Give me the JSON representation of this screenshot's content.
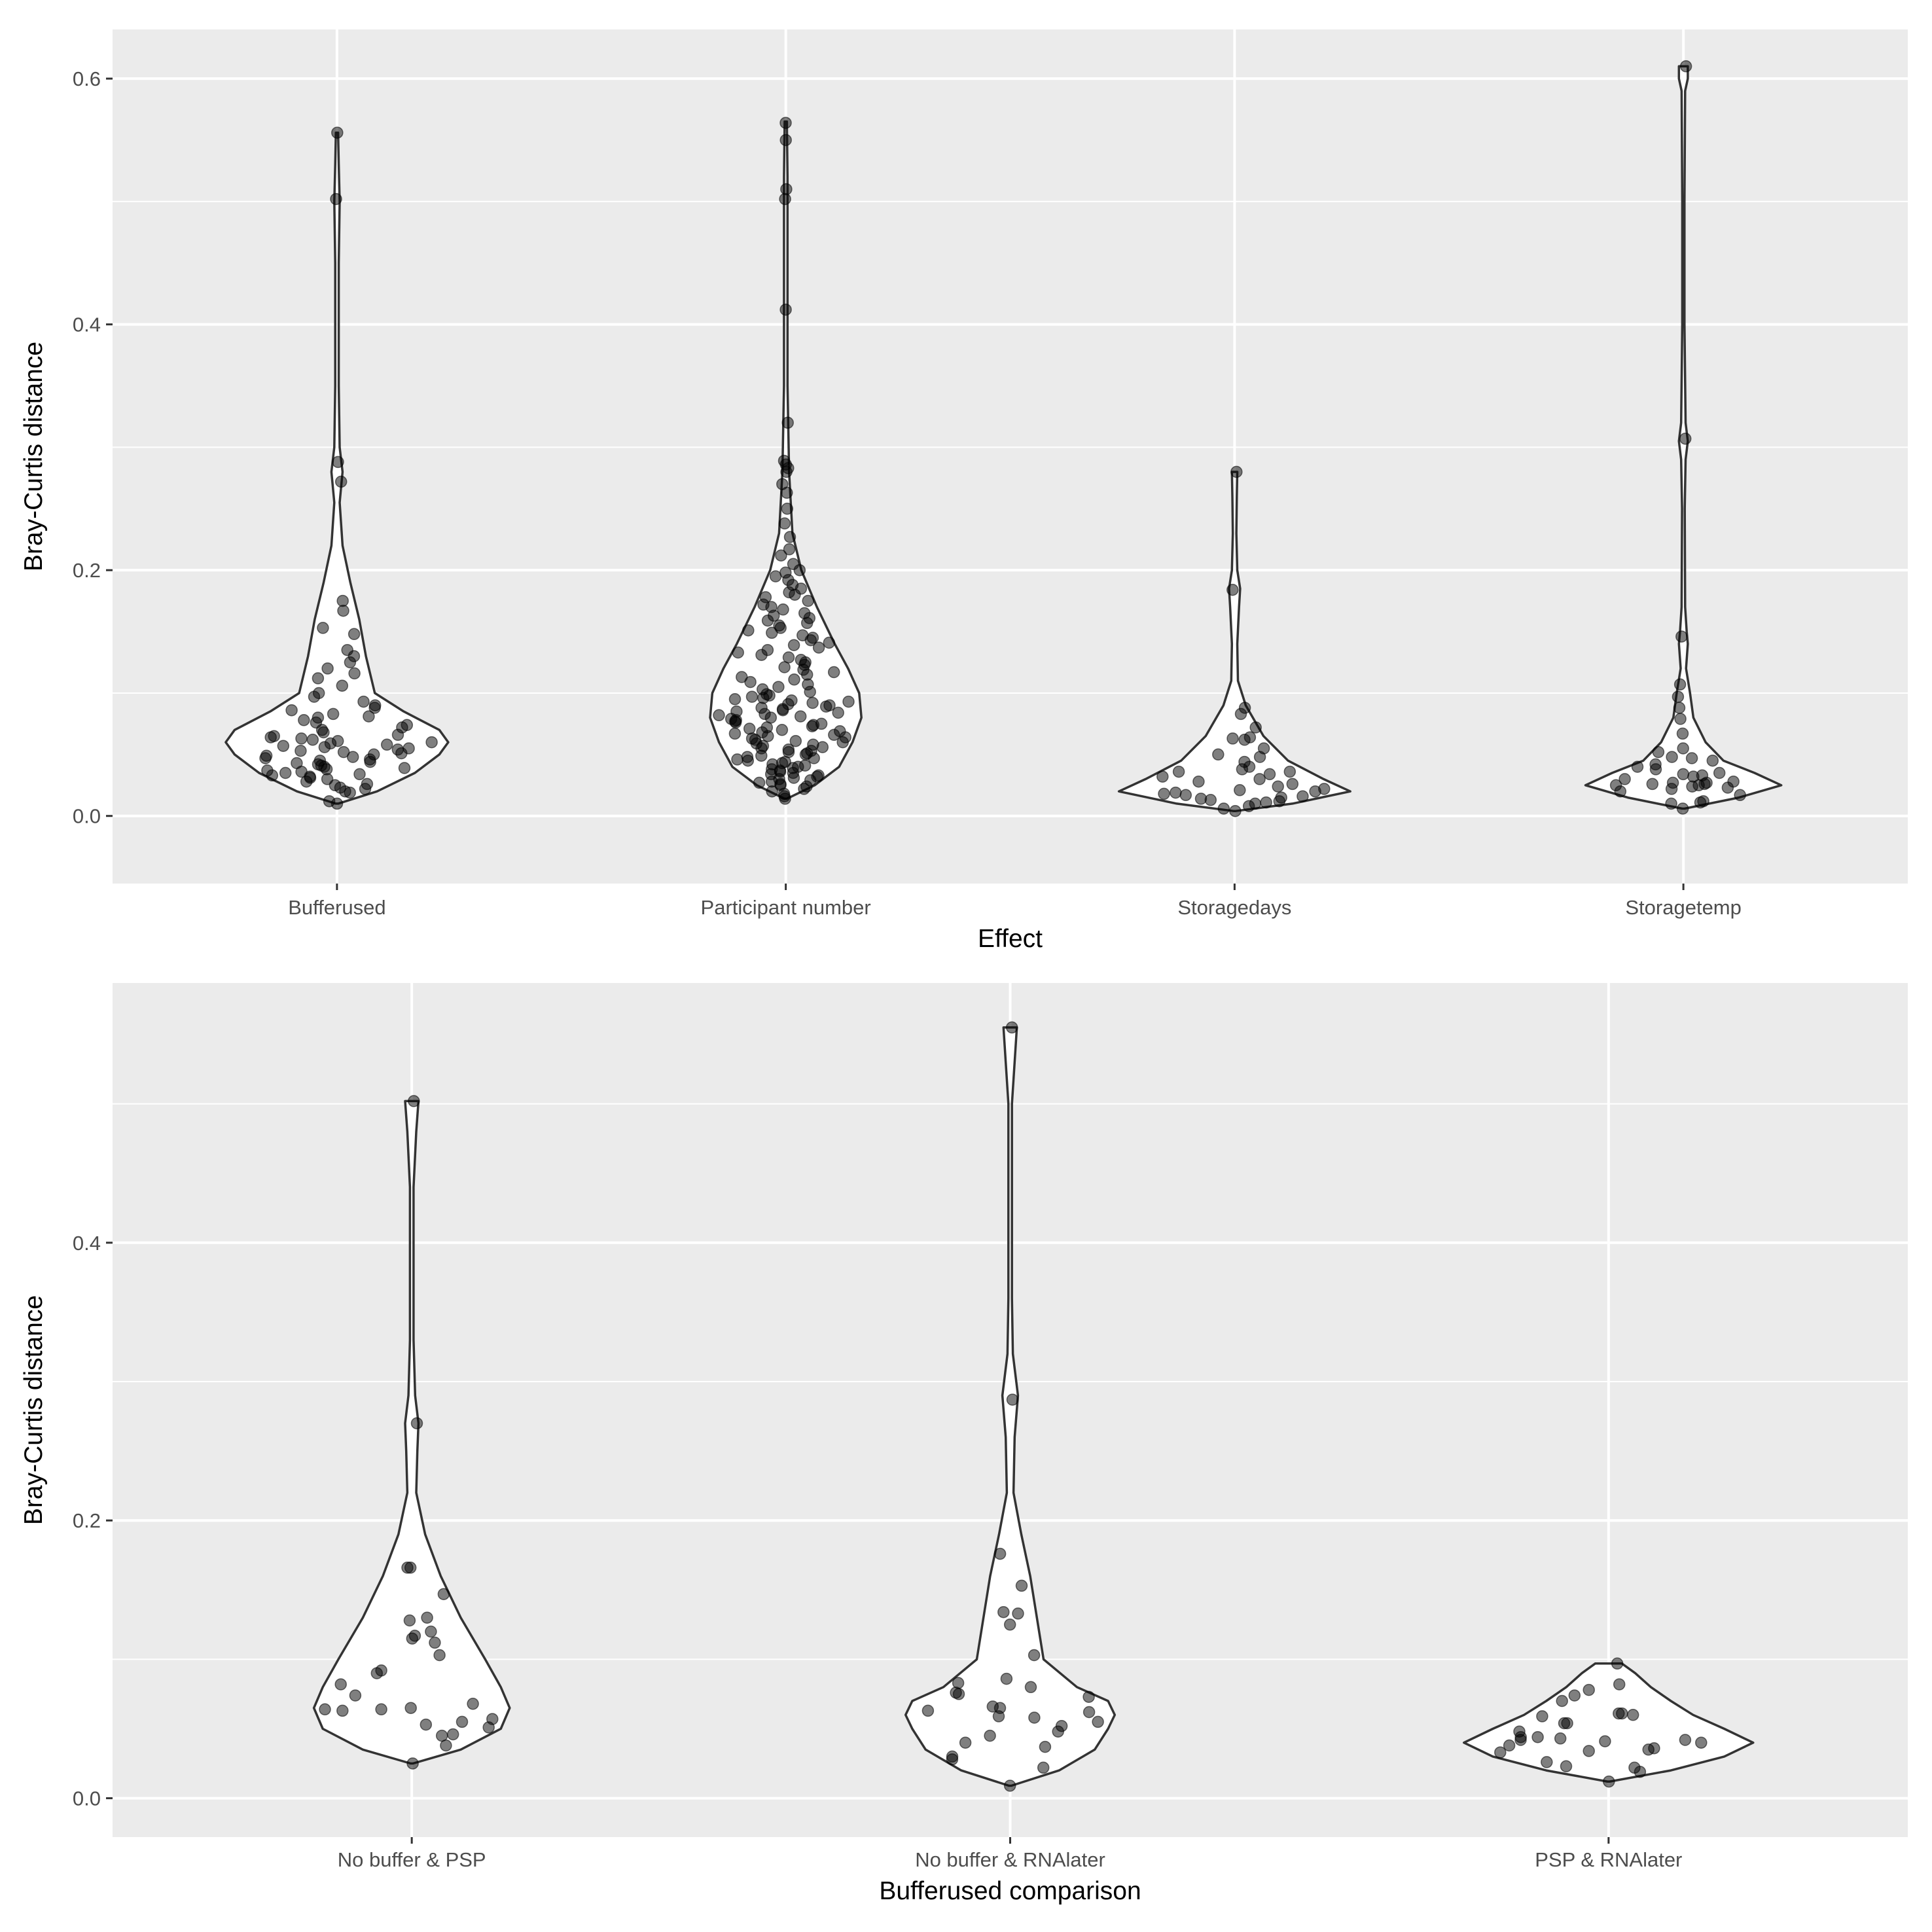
{
  "chart_data": [
    {
      "type": "violin",
      "xlabel": "Effect",
      "ylabel": "Bray-Curtis distance",
      "ylim": [
        -0.055,
        0.64
      ],
      "yticks": [
        0.0,
        0.2,
        0.4,
        0.6
      ],
      "ytick_labels": [
        "0.0",
        "0.2",
        "0.4",
        "0.6"
      ],
      "grid": true,
      "categories": [
        "Bufferused",
        "Participant number",
        "Storagedays",
        "Storagetemp"
      ],
      "violins": [
        {
          "category": "Bufferused",
          "profile": [
            [
              0.01,
              0.005
            ],
            [
              0.02,
              0.18
            ],
            [
              0.035,
              0.35
            ],
            [
              0.05,
              0.46
            ],
            [
              0.06,
              0.5
            ],
            [
              0.07,
              0.46
            ],
            [
              0.085,
              0.3
            ],
            [
              0.1,
              0.17
            ],
            [
              0.13,
              0.13
            ],
            [
              0.16,
              0.1
            ],
            [
              0.19,
              0.06
            ],
            [
              0.22,
              0.025
            ],
            [
              0.255,
              0.012
            ],
            [
              0.28,
              0.025
            ],
            [
              0.3,
              0.012
            ],
            [
              0.35,
              0.008
            ],
            [
              0.45,
              0.008
            ],
            [
              0.5,
              0.012
            ],
            [
              0.53,
              0.008
            ],
            [
              0.556,
              0.005
            ]
          ],
          "points": [
            0.556,
            0.502,
            0.288,
            0.272,
            0.175,
            0.167,
            0.153,
            0.148,
            0.135,
            0.13,
            0.125,
            0.12,
            0.116,
            0.112,
            0.106,
            0.1,
            0.097,
            0.093,
            0.09,
            0.088,
            0.086,
            0.083,
            0.081,
            0.08,
            0.078,
            0.076,
            0.074,
            0.072,
            0.07,
            0.068,
            0.066,
            0.065,
            0.064,
            0.063,
            0.062,
            0.061,
            0.06,
            0.059,
            0.058,
            0.057,
            0.056,
            0.055,
            0.054,
            0.053,
            0.052,
            0.051,
            0.05,
            0.049,
            0.048,
            0.047,
            0.046,
            0.045,
            0.044,
            0.043,
            0.042,
            0.041,
            0.04,
            0.039,
            0.038,
            0.037,
            0.036,
            0.035,
            0.034,
            0.033,
            0.032,
            0.031,
            0.03,
            0.028,
            0.026,
            0.025,
            0.023,
            0.022,
            0.02,
            0.019,
            0.012,
            0.01
          ]
        },
        {
          "category": "Participant number",
          "profile": [
            [
              0.014,
              0.005
            ],
            [
              0.025,
              0.13
            ],
            [
              0.04,
              0.24
            ],
            [
              0.06,
              0.3
            ],
            [
              0.08,
              0.34
            ],
            [
              0.1,
              0.33
            ],
            [
              0.12,
              0.28
            ],
            [
              0.14,
              0.22
            ],
            [
              0.17,
              0.14
            ],
            [
              0.2,
              0.07
            ],
            [
              0.23,
              0.03
            ],
            [
              0.28,
              0.015
            ],
            [
              0.35,
              0.008
            ],
            [
              0.45,
              0.008
            ],
            [
              0.52,
              0.008
            ],
            [
              0.565,
              0.005
            ]
          ],
          "points": [
            0.564,
            0.55,
            0.51,
            0.502,
            0.412,
            0.32,
            0.289,
            0.286,
            0.283,
            0.28,
            0.27,
            0.263,
            0.25,
            0.238,
            0.227,
            0.217,
            0.212,
            0.205,
            0.2,
            0.198,
            0.195,
            0.192,
            0.188,
            0.185,
            0.182,
            0.18,
            0.178,
            0.175,
            0.172,
            0.17,
            0.168,
            0.165,
            0.163,
            0.161,
            0.159,
            0.157,
            0.155,
            0.153,
            0.151,
            0.149,
            0.147,
            0.145,
            0.143,
            0.141,
            0.139,
            0.137,
            0.135,
            0.133,
            0.131,
            0.129,
            0.127,
            0.125,
            0.123,
            0.121,
            0.119,
            0.117,
            0.115,
            0.113,
            0.111,
            0.109,
            0.107,
            0.105,
            0.103,
            0.101,
            0.099,
            0.098,
            0.097,
            0.096,
            0.095,
            0.094,
            0.093,
            0.092,
            0.091,
            0.09,
            0.089,
            0.088,
            0.087,
            0.086,
            0.085,
            0.084,
            0.083,
            0.082,
            0.081,
            0.08,
            0.079,
            0.078,
            0.077,
            0.076,
            0.075,
            0.074,
            0.073,
            0.072,
            0.071,
            0.07,
            0.069,
            0.068,
            0.067,
            0.066,
            0.065,
            0.064,
            0.063,
            0.062,
            0.061,
            0.06,
            0.059,
            0.058,
            0.057,
            0.056,
            0.055,
            0.054,
            0.053,
            0.052,
            0.051,
            0.05,
            0.049,
            0.048,
            0.047,
            0.046,
            0.045,
            0.044,
            0.043,
            0.042,
            0.041,
            0.04,
            0.039,
            0.038,
            0.037,
            0.036,
            0.035,
            0.034,
            0.033,
            0.032,
            0.031,
            0.03,
            0.029,
            0.028,
            0.027,
            0.026,
            0.025,
            0.024,
            0.022,
            0.02,
            0.018,
            0.016,
            0.014
          ]
        },
        {
          "category": "Storagedays",
          "profile": [
            [
              0.004,
              0.005
            ],
            [
              0.01,
              0.26
            ],
            [
              0.02,
              0.52
            ],
            [
              0.03,
              0.4
            ],
            [
              0.045,
              0.24
            ],
            [
              0.065,
              0.13
            ],
            [
              0.09,
              0.05
            ],
            [
              0.11,
              0.015
            ],
            [
              0.14,
              0.012
            ],
            [
              0.17,
              0.02
            ],
            [
              0.185,
              0.025
            ],
            [
              0.2,
              0.012
            ],
            [
              0.23,
              0.008
            ],
            [
              0.26,
              0.01
            ],
            [
              0.28,
              0.012
            ]
          ],
          "points": [
            0.28,
            0.184,
            0.088,
            0.083,
            0.072,
            0.064,
            0.063,
            0.062,
            0.055,
            0.05,
            0.048,
            0.044,
            0.04,
            0.038,
            0.036,
            0.036,
            0.034,
            0.032,
            0.03,
            0.028,
            0.026,
            0.024,
            0.022,
            0.021,
            0.02,
            0.019,
            0.018,
            0.017,
            0.016,
            0.015,
            0.014,
            0.013,
            0.012,
            0.011,
            0.01,
            0.008,
            0.006,
            0.004
          ]
        },
        {
          "category": "Storagetemp",
          "profile": [
            [
              0.006,
              0.005
            ],
            [
              0.015,
              0.25
            ],
            [
              0.025,
              0.44
            ],
            [
              0.035,
              0.32
            ],
            [
              0.045,
              0.18
            ],
            [
              0.06,
              0.1
            ],
            [
              0.08,
              0.045
            ],
            [
              0.1,
              0.03
            ],
            [
              0.12,
              0.012
            ],
            [
              0.14,
              0.02
            ],
            [
              0.15,
              0.015
            ],
            [
              0.17,
              0.008
            ],
            [
              0.25,
              0.006
            ],
            [
              0.29,
              0.01
            ],
            [
              0.305,
              0.02
            ],
            [
              0.32,
              0.01
            ],
            [
              0.4,
              0.005
            ],
            [
              0.5,
              0.005
            ],
            [
              0.59,
              0.008
            ],
            [
              0.6,
              0.02
            ],
            [
              0.61,
              0.02
            ]
          ],
          "points": [
            0.61,
            0.307,
            0.146,
            0.107,
            0.097,
            0.088,
            0.079,
            0.067,
            0.055,
            0.052,
            0.048,
            0.047,
            0.045,
            0.042,
            0.04,
            0.038,
            0.035,
            0.034,
            0.033,
            0.032,
            0.03,
            0.028,
            0.027,
            0.027,
            0.026,
            0.026,
            0.025,
            0.025,
            0.024,
            0.023,
            0.022,
            0.02,
            0.017,
            0.012,
            0.011,
            0.01,
            0.006
          ]
        }
      ]
    },
    {
      "type": "violin",
      "xlabel": "Bufferused comparison",
      "ylabel": "Bray-Curtis distance",
      "ylim": [
        -0.028,
        0.587
      ],
      "yticks": [
        0.0,
        0.2,
        0.4
      ],
      "ytick_labels": [
        "0.0",
        "0.2",
        "0.4"
      ],
      "grid": true,
      "categories": [
        "No buffer & PSP",
        "No buffer & RNAlater",
        "PSP & RNAlater"
      ],
      "violins": [
        {
          "category": "No buffer & PSP",
          "profile": [
            [
              0.025,
              0.005
            ],
            [
              0.035,
              0.22
            ],
            [
              0.05,
              0.4
            ],
            [
              0.065,
              0.44
            ],
            [
              0.08,
              0.4
            ],
            [
              0.1,
              0.33
            ],
            [
              0.13,
              0.22
            ],
            [
              0.16,
              0.13
            ],
            [
              0.19,
              0.06
            ],
            [
              0.22,
              0.02
            ],
            [
              0.25,
              0.025
            ],
            [
              0.27,
              0.03
            ],
            [
              0.29,
              0.015
            ],
            [
              0.33,
              0.008
            ],
            [
              0.44,
              0.008
            ],
            [
              0.48,
              0.02
            ],
            [
              0.502,
              0.03
            ]
          ],
          "points": [
            0.502,
            0.27,
            0.166,
            0.166,
            0.147,
            0.13,
            0.128,
            0.12,
            0.117,
            0.115,
            0.112,
            0.103,
            0.092,
            0.09,
            0.082,
            0.074,
            0.068,
            0.065,
            0.064,
            0.064,
            0.063,
            0.057,
            0.055,
            0.053,
            0.051,
            0.046,
            0.045,
            0.038,
            0.025
          ]
        },
        {
          "category": "No buffer & RNAlater",
          "profile": [
            [
              0.009,
              0.005
            ],
            [
              0.02,
              0.22
            ],
            [
              0.035,
              0.38
            ],
            [
              0.05,
              0.44
            ],
            [
              0.06,
              0.47
            ],
            [
              0.07,
              0.44
            ],
            [
              0.08,
              0.3
            ],
            [
              0.1,
              0.15
            ],
            [
              0.13,
              0.12
            ],
            [
              0.16,
              0.09
            ],
            [
              0.19,
              0.05
            ],
            [
              0.22,
              0.015
            ],
            [
              0.26,
              0.02
            ],
            [
              0.29,
              0.035
            ],
            [
              0.32,
              0.012
            ],
            [
              0.36,
              0.008
            ],
            [
              0.5,
              0.008
            ],
            [
              0.53,
              0.02
            ],
            [
              0.555,
              0.03
            ]
          ],
          "points": [
            0.555,
            0.287,
            0.176,
            0.153,
            0.134,
            0.133,
            0.125,
            0.103,
            0.086,
            0.083,
            0.08,
            0.076,
            0.075,
            0.073,
            0.066,
            0.065,
            0.063,
            0.062,
            0.059,
            0.058,
            0.055,
            0.052,
            0.048,
            0.045,
            0.04,
            0.037,
            0.03,
            0.028,
            0.022,
            0.009
          ]
        },
        {
          "category": "PSP & RNAlater",
          "profile": [
            [
              0.012,
              0.005
            ],
            [
              0.02,
              0.28
            ],
            [
              0.03,
              0.52
            ],
            [
              0.04,
              0.65
            ],
            [
              0.05,
              0.52
            ],
            [
              0.06,
              0.38
            ],
            [
              0.07,
              0.28
            ],
            [
              0.08,
              0.19
            ],
            [
              0.09,
              0.12
            ],
            [
              0.097,
              0.06
            ]
          ],
          "points": [
            0.097,
            0.082,
            0.078,
            0.074,
            0.07,
            0.061,
            0.061,
            0.06,
            0.059,
            0.054,
            0.054,
            0.048,
            0.044,
            0.044,
            0.043,
            0.042,
            0.042,
            0.041,
            0.04,
            0.038,
            0.036,
            0.035,
            0.034,
            0.033,
            0.026,
            0.023,
            0.022,
            0.019,
            0.012
          ]
        }
      ]
    }
  ],
  "colors": {
    "panel_bg": "#ebebeb",
    "grid": "#ffffff",
    "violin_fill": "#ffffff",
    "violin_stroke": "#333333",
    "point": "#000000",
    "tick_label": "#4d4d4d",
    "axis_title": "#000000",
    "tick_mark": "#333333"
  }
}
